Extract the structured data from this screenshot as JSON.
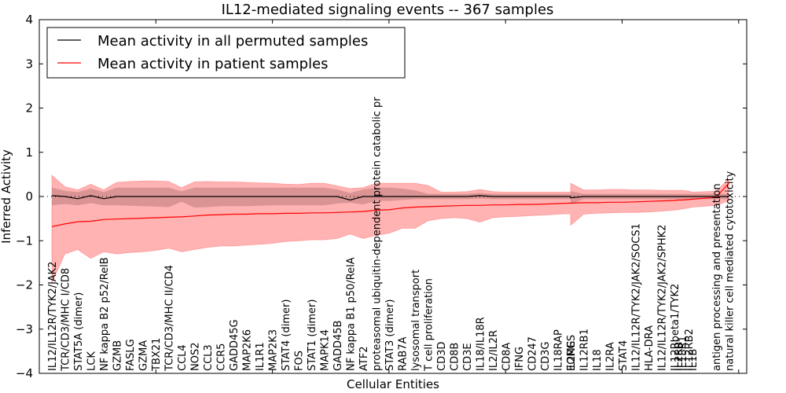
{
  "chart_data": {
    "type": "line",
    "title": "IL12-mediated signaling events -- 367 samples",
    "xlabel": "Cellular Entities",
    "ylabel": "Inferred Activity",
    "ylim": [
      -4,
      4
    ],
    "yticks": [
      "−4",
      "−3",
      "−2",
      "−1",
      "0",
      "1",
      "2",
      "3",
      "4"
    ],
    "ytick_values": [
      -4,
      -3,
      -2,
      -1,
      0,
      1,
      2,
      3,
      4
    ],
    "grid": false,
    "legend_position": "top-left",
    "legend": [
      {
        "label": "Mean activity in all permuted samples",
        "color": "#000000"
      },
      {
        "label": "Mean activity in patient samples",
        "color": "#ff0000"
      }
    ],
    "colors": {
      "patient_band": "#ff9999",
      "permuted_band": "#cc8888",
      "patient_line": "#ff0000",
      "permuted_line": "#000000"
    },
    "categories": [
      "IL12/IL12R/TYK2/JAK2",
      "TCR/CD3/MHC I/CD8",
      "STAT5A (dimer)",
      "LCK",
      "NF kappa B2 p52/RelB",
      "GZMB",
      "FASLG",
      "GZMA",
      "TBX21",
      "TCR/CD3/MHC II/CD4",
      "CCL4",
      "NOS2",
      "CCL3",
      "CCR5",
      "GADD45G",
      "MAP2K6",
      "IL1R1",
      "MAP2K3",
      "STAT4 (dimer)",
      "FOS",
      "STAT1 (dimer)",
      "MAPK14",
      "GADD45B",
      "NF kappa B1 p50/RelA",
      "ATF2",
      "proteasomal ubiquitin-dependent protein catabolic pr",
      "STAT3 (dimer)",
      "RAB7A",
      "lysosomal transport",
      "T cell proliferation",
      "CD3D",
      "CD8B",
      "CD3E",
      "IL18/IL18R",
      "IL2/IL2R",
      "CD8A",
      "IFNG",
      "CD247",
      "CD3G",
      "IL18RAP",
      "EOMES",
      "IL2RG",
      "IL12RB1",
      "IL18",
      "IL2RA",
      "STAT4",
      "IL12/IL12R/TYK2/JAK2/SOCS1",
      "HLA-DRA",
      "IL12/IL12R/TYK2/JAK2/SPHK2",
      "IL12Rbeta1/TYK2",
      "IL2RB",
      "IL18R1",
      "IL12RB2",
      "IL1B",
      "antigen processing and presentation",
      "natural killer cell mediated cytotoxicity"
    ],
    "x": [
      1,
      2,
      3,
      4,
      5,
      6,
      7,
      8,
      9,
      10,
      11,
      12,
      13,
      14,
      15,
      16,
      17,
      18,
      19,
      20,
      21,
      22,
      23,
      24,
      25,
      26,
      27,
      28,
      29,
      30,
      31,
      32,
      33,
      34,
      35,
      36,
      37,
      38,
      39,
      40,
      41,
      41,
      42,
      43,
      44,
      45,
      46,
      47,
      48,
      49,
      49.3,
      49.6,
      50.1,
      50.4,
      52.2,
      53.2
    ],
    "series": [
      {
        "name": "Mean activity in patient samples",
        "values": [
          -0.68,
          -0.62,
          -0.57,
          -0.56,
          -0.52,
          -0.51,
          -0.5,
          -0.49,
          -0.48,
          -0.47,
          -0.46,
          -0.44,
          -0.42,
          -0.41,
          -0.4,
          -0.4,
          -0.39,
          -0.39,
          -0.38,
          -0.38,
          -0.37,
          -0.37,
          -0.36,
          -0.35,
          -0.34,
          -0.31,
          -0.3,
          -0.26,
          -0.24,
          -0.23,
          -0.22,
          -0.21,
          -0.2,
          -0.2,
          -0.19,
          -0.19,
          -0.18,
          -0.18,
          -0.17,
          -0.16,
          -0.15,
          -0.15,
          -0.14,
          -0.14,
          -0.13,
          -0.13,
          -0.12,
          -0.11,
          -0.1,
          -0.09,
          -0.08,
          -0.08,
          -0.07,
          -0.06,
          -0.02,
          0.3
        ],
        "upper": [
          0.48,
          0.22,
          0.15,
          0.28,
          0.15,
          0.32,
          0.34,
          0.35,
          0.35,
          0.34,
          0.2,
          0.33,
          0.34,
          0.33,
          0.33,
          0.32,
          0.31,
          0.3,
          0.28,
          0.27,
          0.3,
          0.3,
          0.24,
          0.18,
          0.2,
          0.3,
          0.3,
          0.3,
          0.3,
          0.25,
          0.1,
          0.1,
          0.11,
          0.16,
          0.11,
          0.1,
          0.1,
          0.1,
          0.1,
          0.1,
          0.1,
          0.3,
          0.15,
          0.15,
          0.16,
          0.16,
          0.15,
          0.15,
          0.14,
          0.14,
          0.14,
          0.14,
          0.12,
          0.1,
          0.12,
          0.4
        ],
        "lower": [
          -1.95,
          -1.3,
          -1.2,
          -1.4,
          -1.25,
          -1.3,
          -1.27,
          -1.25,
          -1.22,
          -1.17,
          -1.25,
          -1.2,
          -1.15,
          -1.12,
          -1.12,
          -1.1,
          -1.08,
          -1.06,
          -1.02,
          -1.0,
          -0.98,
          -0.98,
          -0.95,
          -0.85,
          -0.95,
          -0.88,
          -0.83,
          -0.72,
          -0.72,
          -0.55,
          -0.5,
          -0.48,
          -0.5,
          -0.58,
          -0.48,
          -0.46,
          -0.45,
          -0.43,
          -0.42,
          -0.4,
          -0.39,
          -0.65,
          -0.4,
          -0.38,
          -0.37,
          -0.36,
          -0.36,
          -0.35,
          -0.33,
          -0.31,
          -0.3,
          -0.28,
          -0.26,
          -0.24,
          -0.2,
          -0.1
        ]
      },
      {
        "name": "Mean activity in all permuted samples",
        "values": [
          0.02,
          0.0,
          -0.05,
          0.02,
          -0.05,
          0.0,
          0.0,
          0.0,
          0.0,
          0.0,
          0.0,
          0.0,
          0.0,
          0.0,
          0.0,
          0.0,
          0.0,
          0.0,
          0.0,
          0.0,
          0.0,
          0.0,
          0.0,
          -0.08,
          0.0,
          0.0,
          0.0,
          0.0,
          0.0,
          0.0,
          0.0,
          0.0,
          0.0,
          0.02,
          0.0,
          0.0,
          0.0,
          0.0,
          0.0,
          0.0,
          0.0,
          -0.03,
          0.0,
          0.0,
          0.0,
          0.0,
          0.0,
          0.0,
          0.0,
          0.0,
          0.0,
          0.0,
          0.0,
          0.0,
          0.0,
          0.0
        ],
        "upper": [
          0.2,
          0.13,
          0.1,
          0.18,
          0.1,
          0.2,
          0.2,
          0.2,
          0.2,
          0.2,
          0.12,
          0.2,
          0.2,
          0.2,
          0.2,
          0.2,
          0.2,
          0.2,
          0.2,
          0.2,
          0.2,
          0.2,
          0.16,
          0.08,
          0.16,
          0.2,
          0.2,
          0.18,
          0.14,
          0.06,
          0.06,
          0.06,
          0.06,
          0.08,
          0.06,
          0.06,
          0.06,
          0.06,
          0.06,
          0.06,
          0.06,
          0.12,
          0.06,
          0.06,
          0.06,
          0.06,
          0.06,
          0.06,
          0.06,
          0.06,
          0.06,
          0.06,
          0.06,
          0.06,
          0.06,
          0.06
        ],
        "lower": [
          -0.2,
          -0.17,
          -0.2,
          -0.15,
          -0.2,
          -0.2,
          -0.21,
          -0.22,
          -0.23,
          -0.24,
          -0.12,
          -0.25,
          -0.24,
          -0.22,
          -0.22,
          -0.22,
          -0.21,
          -0.2,
          -0.2,
          -0.2,
          -0.2,
          -0.2,
          -0.16,
          -0.14,
          -0.18,
          -0.1,
          -0.1,
          -0.08,
          -0.06,
          -0.06,
          -0.06,
          -0.06,
          -0.06,
          -0.05,
          -0.06,
          -0.06,
          -0.06,
          -0.06,
          -0.06,
          -0.06,
          -0.06,
          -0.18,
          -0.06,
          -0.06,
          -0.06,
          -0.06,
          -0.06,
          -0.06,
          -0.06,
          -0.06,
          -0.06,
          -0.06,
          -0.06,
          -0.06,
          -0.06,
          -0.06
        ]
      }
    ]
  }
}
